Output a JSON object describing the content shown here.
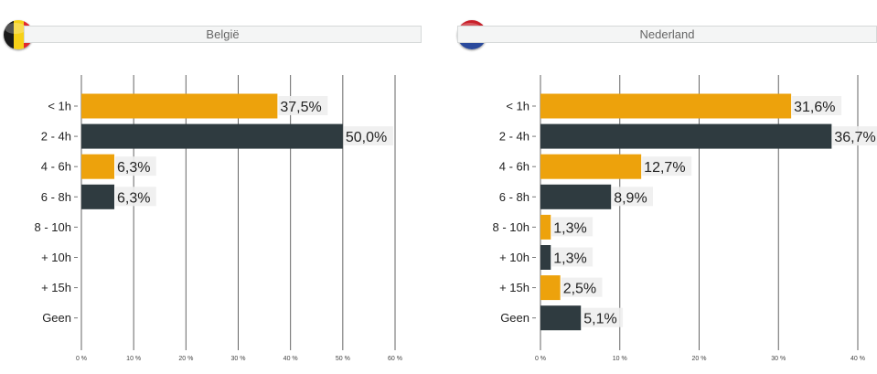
{
  "colors": {
    "orange": "#eda20c",
    "dark": "#2f3b40",
    "grid": "#666666",
    "label_bg": "#eeeeee"
  },
  "chart_data": [
    {
      "type": "bar",
      "orientation": "horizontal",
      "title": "België",
      "flag": "belgium-flag-icon",
      "categories": [
        "< 1h",
        "2 - 4h",
        "4 - 6h",
        "6 - 8h",
        "8 - 10h",
        "+ 10h",
        "+ 15h",
        "Geen"
      ],
      "values": [
        37.5,
        50.0,
        6.3,
        6.3,
        null,
        null,
        null,
        null
      ],
      "value_labels": [
        "37,5%",
        "50,0%",
        "6,3%",
        "6,3%",
        "",
        "",
        "",
        ""
      ],
      "bar_colors": [
        "#eda20c",
        "#2f3b40",
        "#eda20c",
        "#2f3b40",
        "#eda20c",
        "#2f3b40",
        "#eda20c",
        "#2f3b40"
      ],
      "xlim": [
        0,
        60
      ],
      "xticks": [
        0,
        10,
        20,
        30,
        40,
        50,
        60
      ],
      "xtick_labels": [
        "0 %",
        "10 %",
        "20 %",
        "30 %",
        "40 %",
        "50 %",
        "60 %"
      ],
      "grid": true
    },
    {
      "type": "bar",
      "orientation": "horizontal",
      "title": "Nederland",
      "flag": "netherlands-flag-icon",
      "categories": [
        "< 1h",
        "2 - 4h",
        "4 - 6h",
        "6 - 8h",
        "8 - 10h",
        "+ 10h",
        "+ 15h",
        "Geen"
      ],
      "values": [
        31.6,
        36.7,
        12.7,
        8.9,
        1.3,
        1.3,
        2.5,
        5.1
      ],
      "value_labels": [
        "31,6%",
        "36,7%",
        "12,7%",
        "8,9%",
        "1,3%",
        "1,3%",
        "2,5%",
        "5,1%"
      ],
      "bar_colors": [
        "#eda20c",
        "#2f3b40",
        "#eda20c",
        "#2f3b40",
        "#eda20c",
        "#2f3b40",
        "#eda20c",
        "#2f3b40"
      ],
      "xlim": [
        0,
        40
      ],
      "xticks": [
        0,
        10,
        20,
        30,
        40
      ],
      "xtick_labels": [
        "0 %",
        "10 %",
        "20 %",
        "30 %",
        "40 %"
      ],
      "grid": true
    }
  ]
}
